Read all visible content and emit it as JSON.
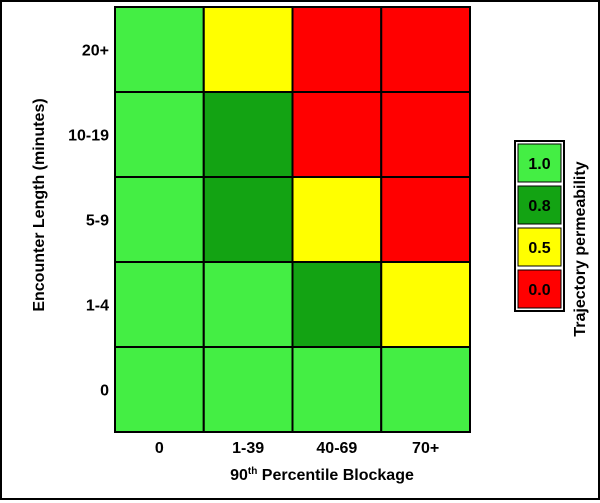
{
  "chart_data": {
    "type": "heatmap",
    "title": "",
    "xlabel_prefix": "90",
    "xlabel_superscript": "th",
    "xlabel_suffix": " Percentile Blockage",
    "ylabel": "Encounter Length (minutes)",
    "x_categories": [
      "0",
      "1-39",
      "40-69",
      "70+"
    ],
    "y_categories": [
      "0",
      "1-4",
      "5-9",
      "10-19",
      "20+"
    ],
    "values": [
      [
        1.0,
        1.0,
        1.0,
        1.0
      ],
      [
        1.0,
        1.0,
        0.8,
        0.5
      ],
      [
        1.0,
        0.8,
        0.5,
        0.0
      ],
      [
        1.0,
        0.8,
        0.0,
        0.0
      ],
      [
        1.0,
        0.5,
        0.0,
        0.0
      ]
    ],
    "legend": {
      "title": "Trajectory permeability",
      "entries": [
        {
          "label": "1.0",
          "value": 1.0,
          "color": "#44EE44"
        },
        {
          "label": "0.8",
          "value": 0.8,
          "color": "#13A313"
        },
        {
          "label": "0.5",
          "value": 0.5,
          "color": "#FFFF00"
        },
        {
          "label": "0.0",
          "value": 0.0,
          "color": "#FF0000"
        }
      ],
      "placement": "right"
    },
    "grid": false
  }
}
